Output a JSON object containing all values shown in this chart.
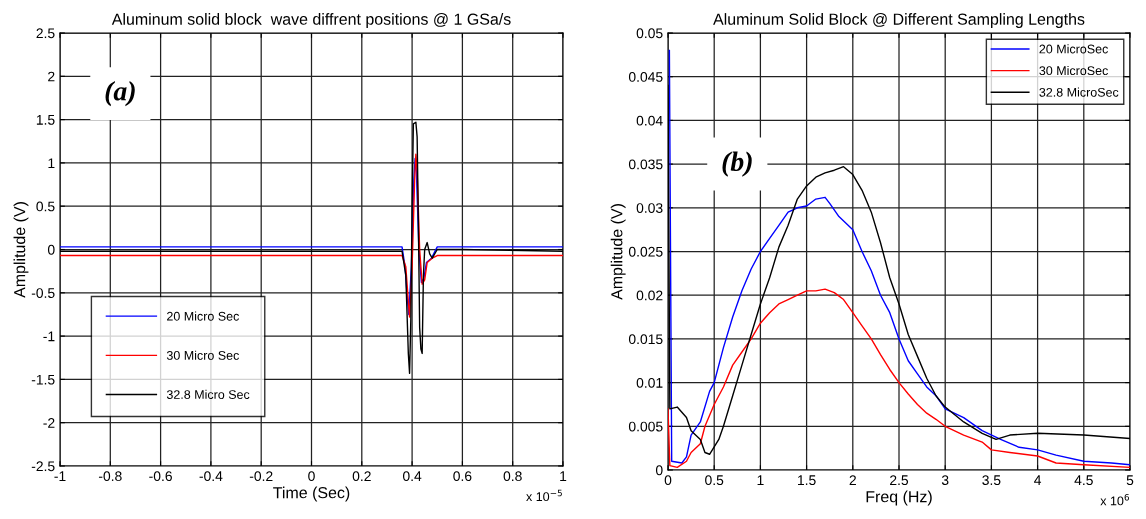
{
  "chart_data": [
    {
      "type": "line",
      "title": "Aluminum solid block  wave diffrent positions @ 1 GSa/s",
      "xlabel": "Time (Sec)",
      "ylabel": "Amplitude (V)",
      "annotations": [
        "(a)",
        "x 10$^{−5}$"
      ],
      "xlim": [
        -1,
        1
      ],
      "ylim": [
        -2.5,
        2.5
      ],
      "xticks": [
        -1,
        -0.8,
        -0.6,
        -0.4,
        -0.2,
        0,
        0.2,
        0.4,
        0.6,
        0.8,
        1
      ],
      "yticks": [
        -2.5,
        -2,
        -1.5,
        -1,
        -0.5,
        0,
        0.5,
        1,
        1.5,
        2,
        2.5
      ],
      "grid": true,
      "legend": "bottom left",
      "series": [
        {
          "name": "20 Micro Sec",
          "color": "#0000ff",
          "x": [
            -1,
            -0.5,
            0,
            0.36,
            0.372,
            0.382,
            0.387,
            0.397,
            0.407,
            0.412,
            0.417,
            0.427,
            0.437,
            0.447,
            0.457,
            0.477,
            0.5,
            0.6,
            1
          ],
          "values": [
            0.03,
            0.03,
            0.03,
            0.03,
            -0.2,
            -0.6,
            -0.75,
            -0.2,
            0.8,
            1.05,
            0.9,
            0.0,
            -0.38,
            -0.33,
            -0.15,
            -0.1,
            0.03,
            0.03,
            0.03
          ]
        },
        {
          "name": "30 Micro Sec",
          "color": "#ff0000",
          "x": [
            -1,
            -0.5,
            0,
            0.36,
            0.375,
            0.385,
            0.39,
            0.4,
            0.41,
            0.415,
            0.42,
            0.43,
            0.44,
            0.45,
            0.46,
            0.48,
            0.5,
            0.6,
            1
          ],
          "values": [
            -0.07,
            -0.07,
            -0.07,
            -0.07,
            -0.2,
            -0.6,
            -0.78,
            -0.2,
            0.8,
            1.1,
            0.9,
            0.0,
            -0.4,
            -0.35,
            -0.15,
            -0.1,
            -0.07,
            -0.07,
            -0.07
          ]
        },
        {
          "name": "32.8 Micro Sec",
          "color": "#000000",
          "x": [
            -1,
            -0.5,
            0,
            0.36,
            0.375,
            0.385,
            0.39,
            0.395,
            0.4,
            0.405,
            0.415,
            0.42,
            0.425,
            0.43,
            0.435,
            0.44,
            0.445,
            0.45,
            0.46,
            0.47,
            0.48,
            0.5,
            0.6,
            1
          ],
          "values": [
            -0.02,
            -0.02,
            -0.02,
            -0.02,
            -0.3,
            -1.2,
            -1.43,
            -0.8,
            0.5,
            1.45,
            1.47,
            1.3,
            0.3,
            -0.9,
            -1.15,
            -1.2,
            -0.3,
            0.0,
            0.08,
            -0.05,
            -0.1,
            0.0,
            0.0,
            -0.02
          ]
        }
      ]
    },
    {
      "type": "line",
      "title": "Aluminum Solid Block @ Different Sampling Lengths",
      "xlabel": "Freq (Hz)",
      "ylabel": "Amplitude (V)",
      "annotations": [
        "(b)",
        "x 10$^{6}$"
      ],
      "xlim": [
        0,
        5
      ],
      "ylim": [
        0,
        0.05
      ],
      "xticks": [
        0,
        0.5,
        1,
        1.5,
        2,
        2.5,
        3,
        3.5,
        4,
        4.5,
        5
      ],
      "yticks": [
        0,
        0.005,
        0.01,
        0.015,
        0.02,
        0.025,
        0.03,
        0.035,
        0.04,
        0.045,
        0.05
      ],
      "grid": true,
      "legend": "top right",
      "series": [
        {
          "name": "20 MicroSec",
          "color": "#0000ff",
          "x": [
            0.015,
            0.04,
            0.15,
            0.2,
            0.25,
            0.35,
            0.45,
            0.5,
            0.6,
            0.7,
            0.8,
            0.9,
            1.0,
            1.1,
            1.2,
            1.3,
            1.4,
            1.5,
            1.6,
            1.7,
            1.75,
            1.85,
            2.0,
            2.1,
            2.2,
            2.3,
            2.4,
            2.5,
            2.6,
            2.7,
            2.8,
            2.9,
            3.0,
            3.2,
            3.4,
            3.6,
            3.8,
            4.0,
            4.2,
            4.5,
            4.8,
            5.0
          ],
          "values": [
            0.048,
            0.001,
            0.0008,
            0.0015,
            0.004,
            0.0055,
            0.009,
            0.01,
            0.014,
            0.0175,
            0.0205,
            0.023,
            0.025,
            0.0265,
            0.028,
            0.0295,
            0.03,
            0.0302,
            0.031,
            0.0312,
            0.0305,
            0.029,
            0.0275,
            0.025,
            0.0228,
            0.02,
            0.018,
            0.015,
            0.0125,
            0.011,
            0.0095,
            0.0085,
            0.007,
            0.006,
            0.0045,
            0.0035,
            0.0026,
            0.0023,
            0.0017,
            0.001,
            0.0008,
            0.0006
          ]
        },
        {
          "name": "30 MicroSec",
          "color": "#ff0000",
          "x": [
            0,
            0.02,
            0.1,
            0.2,
            0.25,
            0.35,
            0.4,
            0.5,
            0.6,
            0.7,
            0.8,
            0.9,
            1.0,
            1.1,
            1.2,
            1.3,
            1.4,
            1.5,
            1.6,
            1.7,
            1.8,
            1.9,
            2.0,
            2.1,
            2.2,
            2.3,
            2.4,
            2.5,
            2.6,
            2.7,
            2.8,
            2.9,
            3.0,
            3.2,
            3.4,
            3.5,
            3.7,
            4.0,
            4.2,
            4.5,
            5.0
          ],
          "values": [
            0.007,
            0.0005,
            0.0003,
            0.001,
            0.002,
            0.003,
            0.005,
            0.0075,
            0.0095,
            0.012,
            0.0135,
            0.015,
            0.0168,
            0.018,
            0.019,
            0.0195,
            0.02,
            0.0205,
            0.0205,
            0.0207,
            0.0203,
            0.0195,
            0.018,
            0.0165,
            0.015,
            0.0132,
            0.0115,
            0.01,
            0.0087,
            0.0075,
            0.0065,
            0.0058,
            0.005,
            0.004,
            0.0032,
            0.0023,
            0.002,
            0.0016,
            0.0008,
            0.0006,
            0.0003
          ]
        },
        {
          "name": "32.8 MicroSec",
          "color": "#000000",
          "x": [
            0,
            0.02,
            0.1,
            0.2,
            0.25,
            0.35,
            0.4,
            0.45,
            0.55,
            0.6,
            0.7,
            0.8,
            0.9,
            1.0,
            1.1,
            1.2,
            1.3,
            1.4,
            1.5,
            1.6,
            1.7,
            1.8,
            1.9,
            2.0,
            2.1,
            2.2,
            2.3,
            2.4,
            2.5,
            2.6,
            2.7,
            2.8,
            2.9,
            3.0,
            3.2,
            3.4,
            3.55,
            3.7,
            4.0,
            4.5,
            5.0
          ],
          "values": [
            0.044,
            0.007,
            0.0072,
            0.006,
            0.0045,
            0.0035,
            0.002,
            0.0018,
            0.0035,
            0.005,
            0.0085,
            0.012,
            0.0155,
            0.019,
            0.022,
            0.0255,
            0.028,
            0.031,
            0.0325,
            0.0335,
            0.034,
            0.0343,
            0.0347,
            0.0338,
            0.032,
            0.0295,
            0.026,
            0.022,
            0.019,
            0.0155,
            0.013,
            0.0105,
            0.0085,
            0.0072,
            0.0055,
            0.0042,
            0.0035,
            0.004,
            0.0042,
            0.004,
            0.0036
          ]
        }
      ]
    }
  ]
}
